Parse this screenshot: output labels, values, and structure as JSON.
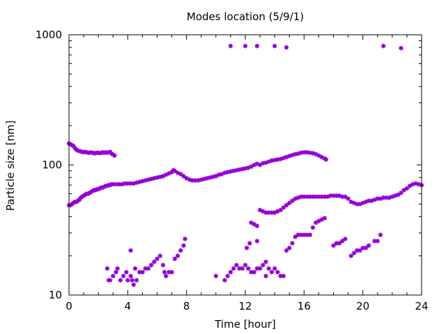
{
  "chart_data": {
    "type": "scatter",
    "title": "Modes location (5/9/1)",
    "xlabel": "Time [hour]",
    "ylabel": "Particle size [nm]",
    "xlim": [
      0,
      24
    ],
    "ylim": [
      10,
      1000
    ],
    "yscale": "log",
    "xticks": [
      0,
      4,
      8,
      12,
      16,
      20,
      24
    ],
    "xtick_labels": [
      "0",
      "4",
      "8",
      "12",
      "16",
      "20",
      "24"
    ],
    "yticks": [
      10,
      100,
      1000
    ],
    "ytick_labels": [
      "10",
      "100",
      "1000"
    ],
    "marker": "asterisk",
    "color": "#9400d3",
    "grid": false,
    "legend": "none",
    "series": [
      {
        "points": [
          [
            0.0,
            146
          ],
          [
            0.1,
            144
          ],
          [
            0.2,
            142
          ],
          [
            0.3,
            140
          ],
          [
            0.4,
            135
          ],
          [
            0.5,
            131
          ],
          [
            0.6,
            129
          ],
          [
            0.7,
            128
          ],
          [
            0.8,
            127
          ],
          [
            0.9,
            126
          ],
          [
            1.0,
            125
          ],
          [
            1.1,
            126
          ],
          [
            1.2,
            125
          ],
          [
            1.3,
            124
          ],
          [
            1.4,
            124
          ],
          [
            1.5,
            125
          ],
          [
            1.6,
            124
          ],
          [
            1.7,
            123
          ],
          [
            1.8,
            123
          ],
          [
            1.9,
            124
          ],
          [
            2.0,
            124
          ],
          [
            2.1,
            123
          ],
          [
            2.2,
            124
          ],
          [
            2.3,
            125
          ],
          [
            2.4,
            124
          ],
          [
            2.5,
            125
          ],
          [
            2.6,
            124
          ],
          [
            2.7,
            125
          ],
          [
            2.8,
            126
          ],
          [
            2.9,
            122
          ],
          [
            3.0,
            120
          ],
          [
            3.1,
            118
          ],
          [
            0.0,
            49
          ],
          [
            0.1,
            49
          ],
          [
            0.2,
            50
          ],
          [
            0.3,
            51
          ],
          [
            0.4,
            52
          ],
          [
            0.5,
            52
          ],
          [
            0.6,
            53
          ],
          [
            0.7,
            54
          ],
          [
            0.8,
            56
          ],
          [
            0.9,
            57
          ],
          [
            1.0,
            58
          ],
          [
            1.1,
            59
          ],
          [
            1.2,
            60
          ],
          [
            1.3,
            60
          ],
          [
            1.4,
            61
          ],
          [
            1.5,
            62
          ],
          [
            1.6,
            63
          ],
          [
            1.7,
            64
          ],
          [
            1.8,
            64
          ],
          [
            1.9,
            65
          ],
          [
            2.0,
            65
          ],
          [
            2.1,
            66
          ],
          [
            2.2,
            67
          ],
          [
            2.3,
            67
          ],
          [
            2.4,
            68
          ],
          [
            2.5,
            69
          ],
          [
            2.6,
            69
          ],
          [
            2.7,
            70
          ],
          [
            2.8,
            70
          ],
          [
            2.9,
            71
          ],
          [
            3.0,
            71
          ],
          [
            3.2,
            71
          ],
          [
            3.4,
            71
          ],
          [
            3.6,
            71
          ],
          [
            3.8,
            72
          ],
          [
            4.0,
            72
          ],
          [
            4.2,
            72
          ],
          [
            4.4,
            72
          ],
          [
            4.6,
            73
          ],
          [
            4.8,
            74
          ],
          [
            5.0,
            75
          ],
          [
            5.2,
            76
          ],
          [
            5.4,
            77
          ],
          [
            5.6,
            78
          ],
          [
            5.8,
            79
          ],
          [
            6.0,
            80
          ],
          [
            6.2,
            81
          ],
          [
            6.4,
            82
          ],
          [
            6.6,
            84
          ],
          [
            6.8,
            86
          ],
          [
            7.0,
            88
          ],
          [
            7.1,
            91
          ],
          [
            7.2,
            90
          ],
          [
            7.4,
            87
          ],
          [
            7.6,
            85
          ],
          [
            7.8,
            82
          ],
          [
            8.0,
            79
          ],
          [
            8.2,
            77
          ],
          [
            8.4,
            76
          ],
          [
            8.6,
            76
          ],
          [
            8.8,
            76
          ],
          [
            9.0,
            77
          ],
          [
            9.2,
            78
          ],
          [
            9.4,
            79
          ],
          [
            9.6,
            80
          ],
          [
            9.8,
            81
          ],
          [
            10.0,
            82
          ],
          [
            10.2,
            84
          ],
          [
            10.4,
            85
          ],
          [
            10.6,
            87
          ],
          [
            10.8,
            88
          ],
          [
            11.0,
            89
          ],
          [
            11.2,
            90
          ],
          [
            11.4,
            91
          ],
          [
            11.6,
            92
          ],
          [
            11.8,
            93
          ],
          [
            12.0,
            94
          ],
          [
            12.2,
            95
          ],
          [
            12.4,
            97
          ],
          [
            12.6,
            100
          ],
          [
            12.8,
            102
          ],
          [
            13.0,
            100
          ],
          [
            13.2,
            103
          ],
          [
            13.4,
            104
          ],
          [
            13.6,
            106
          ],
          [
            13.8,
            108
          ],
          [
            14.0,
            109
          ],
          [
            14.2,
            110
          ],
          [
            14.4,
            111
          ],
          [
            14.6,
            113
          ],
          [
            14.8,
            115
          ],
          [
            15.0,
            117
          ],
          [
            15.2,
            119
          ],
          [
            15.4,
            121
          ],
          [
            15.6,
            122
          ],
          [
            15.8,
            124
          ],
          [
            16.0,
            125
          ],
          [
            16.2,
            125
          ],
          [
            16.4,
            124
          ],
          [
            16.6,
            123
          ],
          [
            16.8,
            121
          ],
          [
            17.0,
            118
          ],
          [
            17.2,
            115
          ],
          [
            17.4,
            112
          ],
          [
            17.5,
            110
          ],
          [
            13.0,
            45
          ],
          [
            13.2,
            44
          ],
          [
            13.4,
            43
          ],
          [
            13.6,
            43
          ],
          [
            13.8,
            43
          ],
          [
            14.0,
            43
          ],
          [
            14.2,
            44
          ],
          [
            14.4,
            45
          ],
          [
            14.6,
            47
          ],
          [
            14.8,
            49
          ],
          [
            15.0,
            51
          ],
          [
            15.2,
            53
          ],
          [
            15.4,
            55
          ],
          [
            15.6,
            56
          ],
          [
            15.8,
            57
          ],
          [
            16.0,
            57
          ],
          [
            16.2,
            57
          ],
          [
            16.4,
            57
          ],
          [
            16.6,
            57
          ],
          [
            16.8,
            57
          ],
          [
            17.0,
            57
          ],
          [
            17.2,
            57
          ],
          [
            17.4,
            57
          ],
          [
            17.6,
            57
          ],
          [
            17.8,
            58
          ],
          [
            18.0,
            58
          ],
          [
            18.2,
            58
          ],
          [
            18.4,
            58
          ],
          [
            18.6,
            57
          ],
          [
            18.8,
            57
          ],
          [
            19.0,
            55
          ],
          [
            19.2,
            52
          ],
          [
            19.4,
            51
          ],
          [
            19.6,
            50
          ],
          [
            19.8,
            50
          ],
          [
            20.0,
            51
          ],
          [
            20.2,
            52
          ],
          [
            20.4,
            53
          ],
          [
            20.6,
            53
          ],
          [
            20.8,
            54
          ],
          [
            21.0,
            55
          ],
          [
            21.2,
            55
          ],
          [
            21.4,
            56
          ],
          [
            21.6,
            56
          ],
          [
            21.8,
            56
          ],
          [
            22.0,
            57
          ],
          [
            22.2,
            58
          ],
          [
            22.4,
            59
          ],
          [
            22.6,
            61
          ],
          [
            22.8,
            64
          ],
          [
            23.0,
            66
          ],
          [
            23.2,
            69
          ],
          [
            23.4,
            71
          ],
          [
            23.6,
            72
          ],
          [
            23.8,
            71
          ],
          [
            24.0,
            70
          ],
          [
            12.4,
            36
          ],
          [
            12.6,
            35
          ],
          [
            12.8,
            34
          ],
          [
            14.8,
            22
          ],
          [
            15.0,
            23
          ],
          [
            15.2,
            25
          ],
          [
            15.4,
            28
          ],
          [
            15.6,
            29
          ],
          [
            15.8,
            29
          ],
          [
            16.0,
            29
          ],
          [
            16.2,
            29
          ],
          [
            16.4,
            29
          ],
          [
            16.6,
            33
          ],
          [
            16.8,
            36
          ],
          [
            17.0,
            37
          ],
          [
            17.2,
            38
          ],
          [
            17.4,
            39
          ],
          [
            18.0,
            24
          ],
          [
            18.2,
            25
          ],
          [
            18.4,
            25
          ],
          [
            18.6,
            26
          ],
          [
            18.8,
            27
          ],
          [
            19.2,
            20
          ],
          [
            19.4,
            21
          ],
          [
            19.6,
            22
          ],
          [
            19.8,
            22
          ],
          [
            20.0,
            23
          ],
          [
            20.2,
            23
          ],
          [
            20.4,
            24
          ],
          [
            20.8,
            26
          ],
          [
            21.0,
            26
          ],
          [
            21.2,
            29
          ],
          [
            12.1,
            23
          ],
          [
            12.3,
            25
          ],
          [
            2.6,
            16
          ],
          [
            2.7,
            13
          ],
          [
            2.8,
            13
          ],
          [
            3.0,
            14
          ],
          [
            3.2,
            15
          ],
          [
            3.3,
            16
          ],
          [
            3.5,
            13
          ],
          [
            3.7,
            14
          ],
          [
            3.9,
            15
          ],
          [
            4.0,
            13
          ],
          [
            4.2,
            14
          ],
          [
            4.3,
            13
          ],
          [
            4.4,
            12
          ],
          [
            4.5,
            16
          ],
          [
            4.6,
            13
          ],
          [
            4.8,
            15
          ],
          [
            5.0,
            15
          ],
          [
            5.2,
            16
          ],
          [
            5.4,
            16
          ],
          [
            5.6,
            17
          ],
          [
            5.8,
            18
          ],
          [
            6.0,
            19
          ],
          [
            6.2,
            20
          ],
          [
            6.4,
            17
          ],
          [
            6.5,
            15
          ],
          [
            6.6,
            14
          ],
          [
            6.8,
            15
          ],
          [
            7.0,
            15
          ],
          [
            7.2,
            19
          ],
          [
            7.4,
            20
          ],
          [
            7.6,
            22
          ],
          [
            7.8,
            24
          ],
          [
            7.9,
            27
          ],
          [
            4.2,
            22
          ],
          [
            10.0,
            14
          ],
          [
            10.6,
            13
          ],
          [
            10.8,
            14
          ],
          [
            11.0,
            15
          ],
          [
            11.2,
            16
          ],
          [
            11.4,
            17
          ],
          [
            11.6,
            16
          ],
          [
            11.8,
            16
          ],
          [
            12.0,
            17
          ],
          [
            12.2,
            16
          ],
          [
            12.4,
            15
          ],
          [
            12.6,
            15
          ],
          [
            12.8,
            16
          ],
          [
            13.0,
            16
          ],
          [
            13.2,
            17
          ],
          [
            13.4,
            18
          ],
          [
            13.6,
            16
          ],
          [
            13.8,
            15
          ],
          [
            14.0,
            16
          ],
          [
            14.2,
            15
          ],
          [
            14.4,
            14
          ],
          [
            14.6,
            14
          ],
          [
            12.8,
            26
          ],
          [
            13.4,
            14
          ]
        ]
      },
      {
        "points": [
          [
            11.0,
            820
          ],
          [
            12.0,
            820
          ],
          [
            12.8,
            820
          ],
          [
            14.0,
            820
          ],
          [
            14.8,
            800
          ],
          [
            21.4,
            820
          ],
          [
            22.6,
            790
          ]
        ]
      }
    ]
  }
}
